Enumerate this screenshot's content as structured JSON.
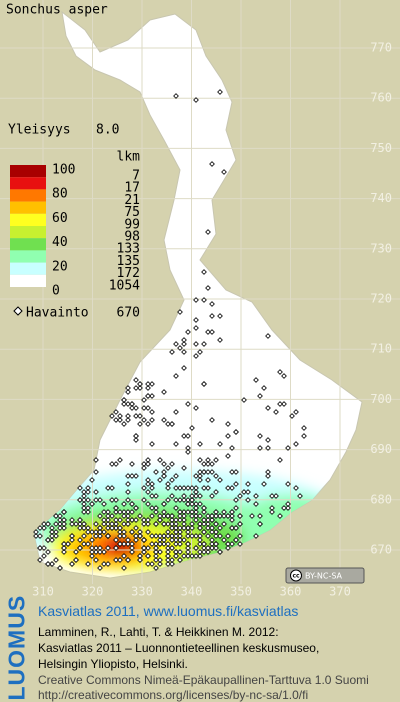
{
  "title": "Sonchus asper",
  "frequency": {
    "label": "Yleisyys",
    "value": "8.0"
  },
  "legend": {
    "header": "lkm",
    "scale_labels": [
      "100",
      "80",
      "60",
      "40",
      "20",
      "0"
    ],
    "rows": [
      {
        "color": "#a80000",
        "count": "7"
      },
      {
        "color": "#e81010",
        "count": "17"
      },
      {
        "color": "#ff7800",
        "count": "21"
      },
      {
        "color": "#ffc000",
        "count": "75"
      },
      {
        "color": "#ffff20",
        "count": "99"
      },
      {
        "color": "#c8f030",
        "count": "98"
      },
      {
        "color": "#70e050",
        "count": "133"
      },
      {
        "color": "#90ffb0",
        "count": "135"
      },
      {
        "color": "#c8ffff",
        "count": "172"
      },
      {
        "color": "#ffffff",
        "count": "1054"
      }
    ]
  },
  "observations": {
    "label": "Havainto",
    "value": "670"
  },
  "y_grid_labels": [
    "770",
    "760",
    "750",
    "740",
    "730",
    "720",
    "710",
    "700",
    "690",
    "680",
    "670"
  ],
  "x_grid_labels": [
    "310",
    "320",
    "330",
    "340",
    "350",
    "360",
    "370"
  ],
  "license_badge": "BY-NC-SA",
  "footer": {
    "logo": "LUOMUS",
    "heading": "Kasviatlas 2011, www.luomus.fi/kasviatlas",
    "citation": [
      "Lamminen, R., Lahti, T. & Heikkinen M. 2012:",
      "Kasviatlas 2011 – Luonnontieteellinen keskusmuseo,",
      "Helsingin Yliopisto, Helsinki."
    ],
    "license": [
      "Creative Commons Nimeä-Epäkaupallinen-Tarttuva 1.0 Suomi",
      "http://creativecommons.org/licenses/by-nc-sa/1.0/fi"
    ]
  }
}
